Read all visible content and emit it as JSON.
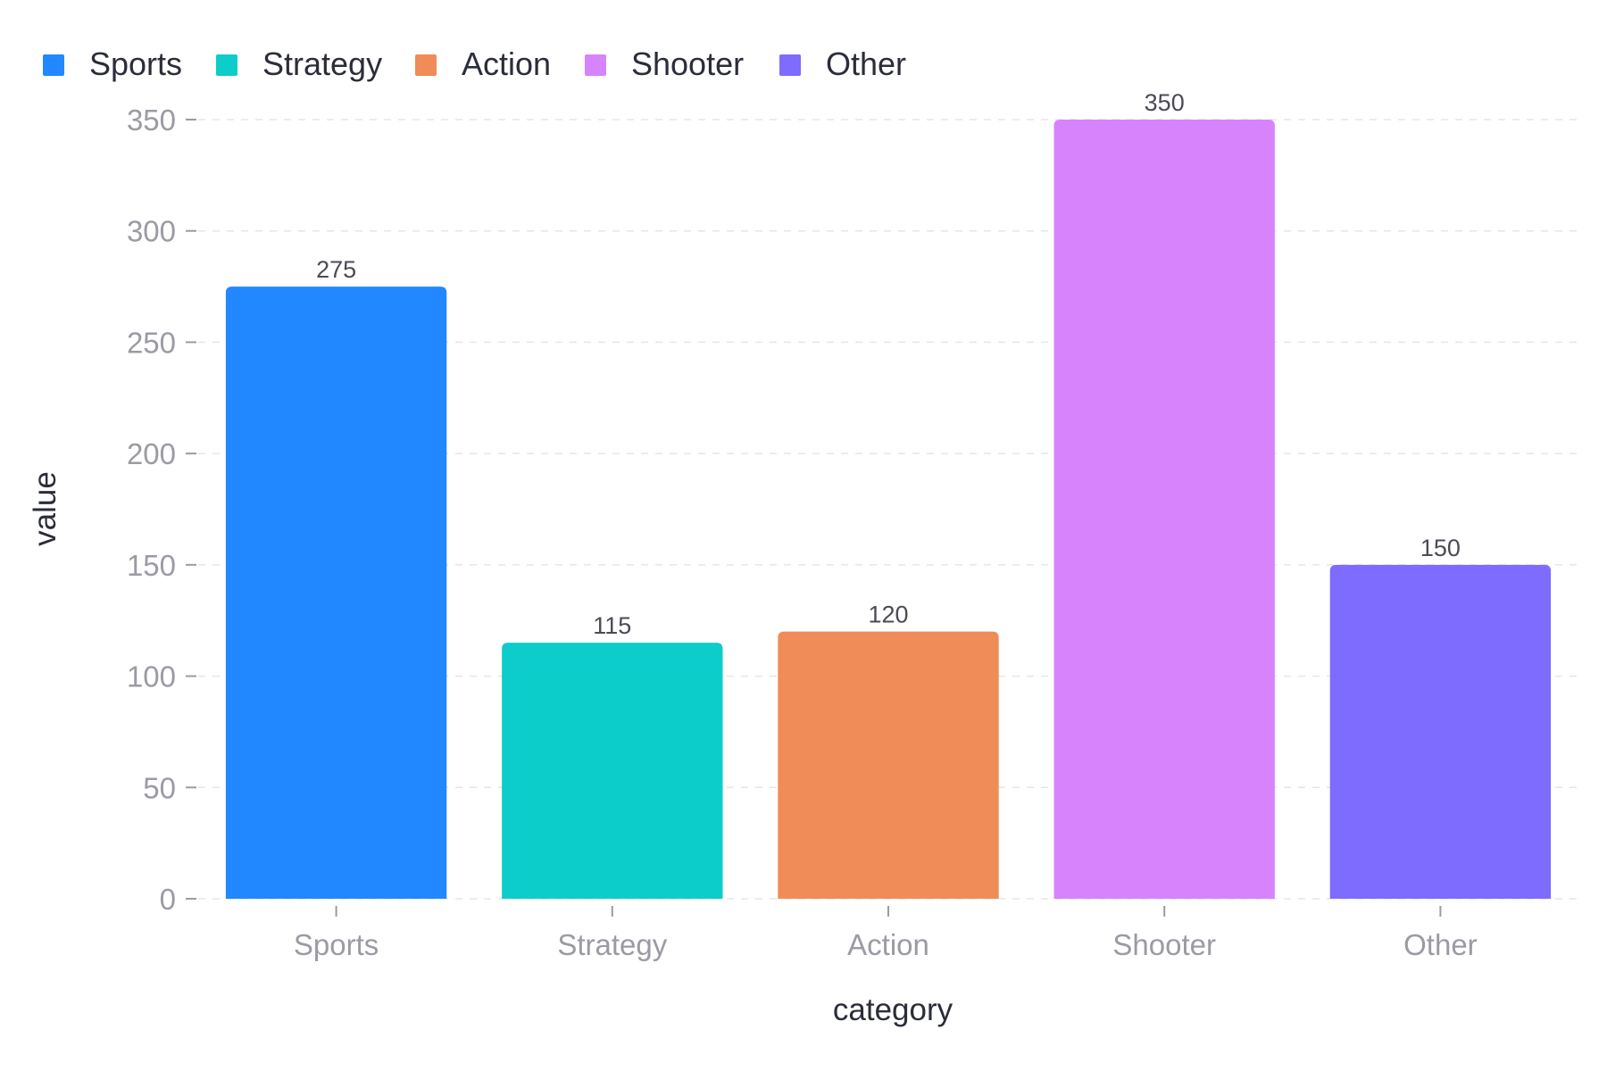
{
  "chart_data": {
    "type": "bar",
    "title": "",
    "xlabel": "category",
    "ylabel": "value",
    "categories": [
      "Sports",
      "Strategy",
      "Action",
      "Shooter",
      "Other"
    ],
    "values": [
      275,
      115,
      120,
      350,
      150
    ],
    "colors": [
      "#2188ff",
      "#0ccdc9",
      "#f08c57",
      "#d683fc",
      "#7e6bff"
    ],
    "ylim": [
      0,
      350
    ],
    "yticks": [
      0,
      50,
      100,
      150,
      200,
      250,
      300,
      350
    ],
    "grid": "horizontal dashed",
    "legend": {
      "position": "top-left",
      "entries": [
        "Sports",
        "Strategy",
        "Action",
        "Shooter",
        "Other"
      ]
    }
  }
}
